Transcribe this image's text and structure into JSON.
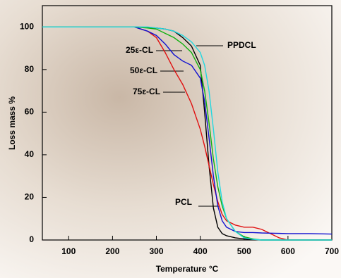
{
  "chart_data": {
    "type": "line",
    "x_label": "Temperature °C",
    "y_label": "Loss mass %",
    "x": [
      40,
      100,
      150,
      200,
      250,
      280,
      300,
      320,
      340,
      360,
      380,
      400,
      410,
      420,
      430,
      440,
      450,
      460,
      480,
      500,
      520,
      540,
      560,
      580,
      600,
      650,
      700
    ],
    "series": [
      {
        "name": "PCL",
        "color": "#000000",
        "values": [
          100,
          100,
          100,
          100,
          100,
          99.8,
          99.5,
          99,
          98,
          95,
          91,
          82,
          60,
          35,
          15,
          6,
          3,
          2,
          1,
          0.5,
          0.2,
          0,
          0,
          0,
          0,
          0,
          0
        ]
      },
      {
        "name": "75ε-CL",
        "color": "#e01010",
        "values": [
          100,
          100,
          100,
          100,
          100,
          98,
          95,
          88,
          80,
          73,
          64,
          52,
          44,
          35,
          26,
          18,
          12,
          9,
          7,
          6,
          6,
          5,
          3,
          1,
          0,
          0,
          0
        ]
      },
      {
        "name": "50ε-CL",
        "color": "#1010d0",
        "values": [
          100,
          100,
          100,
          100,
          100,
          98,
          96,
          92,
          87,
          84,
          82,
          76,
          65,
          48,
          30,
          16,
          9,
          6,
          4,
          3.5,
          3.5,
          3.3,
          3.2,
          3.1,
          3,
          3,
          2.8
        ]
      },
      {
        "name": "25ε-CL",
        "color": "#10b010",
        "values": [
          100,
          100,
          100,
          100,
          100,
          99.5,
          99,
          97,
          95,
          92,
          88,
          80,
          70,
          55,
          38,
          25,
          16,
          10,
          4,
          1.5,
          0.5,
          0,
          0,
          0,
          0,
          0,
          0
        ]
      },
      {
        "name": "PPDCL",
        "color": "#20d8e0",
        "values": [
          100,
          100,
          100,
          100,
          100,
          100,
          99.5,
          99,
          98,
          96,
          93,
          88,
          82,
          70,
          52,
          32,
          18,
          10,
          4,
          1,
          0.3,
          0,
          0,
          0,
          0,
          0,
          0
        ]
      }
    ],
    "xlim": [
      40,
      700
    ],
    "ylim": [
      0,
      110
    ],
    "xticks": [
      100,
      200,
      300,
      400,
      500,
      600,
      700
    ],
    "yticks": [
      0,
      20,
      40,
      60,
      80,
      100
    ]
  }
}
